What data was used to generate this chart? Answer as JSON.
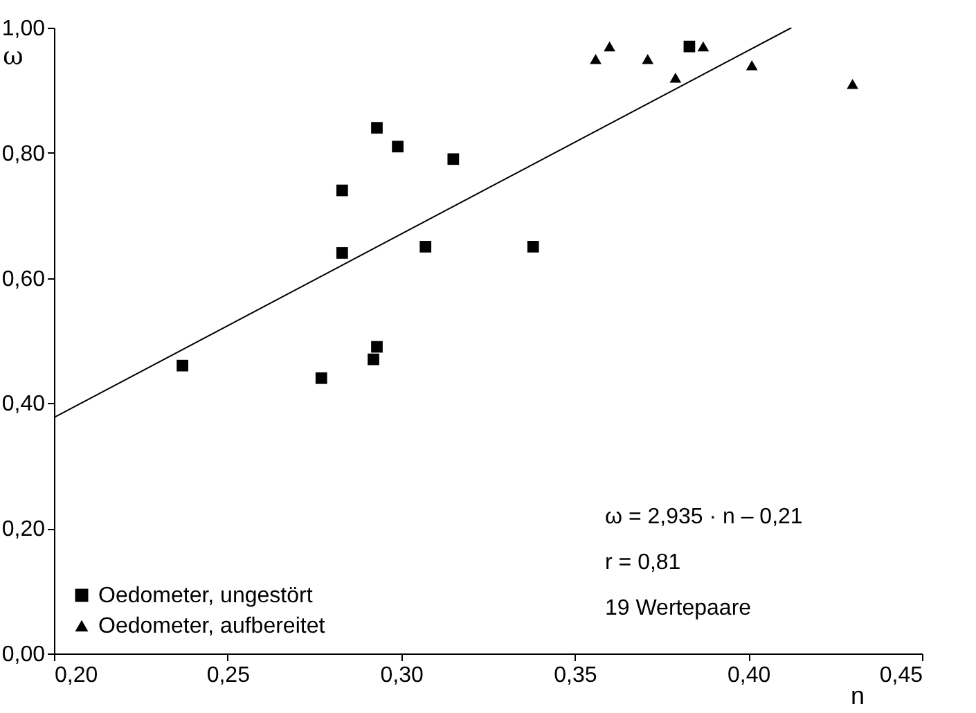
{
  "chart_data": {
    "type": "scatter",
    "xlabel": "n",
    "ylabel": "ω",
    "xlim": [
      0.2,
      0.45
    ],
    "ylim": [
      0,
      1
    ],
    "xticks": [
      {
        "value": 0.2,
        "label": "0,20"
      },
      {
        "value": 0.25,
        "label": "0,25"
      },
      {
        "value": 0.3,
        "label": "0,30"
      },
      {
        "value": 0.35,
        "label": "0,35"
      },
      {
        "value": 0.4,
        "label": "0,40"
      },
      {
        "value": 0.45,
        "label": "0,45"
      }
    ],
    "yticks": [
      {
        "value": 0,
        "label": "0,00"
      },
      {
        "value": 0.2,
        "label": "0,20"
      },
      {
        "value": 0.4,
        "label": "0,40"
      },
      {
        "value": 0.6,
        "label": "0,60"
      },
      {
        "value": 0.8,
        "label": "0,80"
      },
      {
        "value": 1,
        "label": "1,00"
      }
    ],
    "grid": false,
    "legend": "bottom left",
    "series": [
      {
        "name": "Oedometer, ungestört",
        "color": "#000000",
        "marker": "square",
        "x": [
          0.237,
          0.277,
          0.283,
          0.283,
          0.292,
          0.293,
          0.293,
          0.299,
          0.307,
          0.315,
          0.338,
          0.383
        ],
        "values": [
          0.46,
          0.44,
          0.64,
          0.74,
          0.47,
          0.49,
          0.84,
          0.81,
          0.65,
          0.79,
          0.65,
          0.97
        ]
      },
      {
        "name": "Oedometer, aufbereitet",
        "color": "#000000",
        "marker": "triangle",
        "x": [
          0.356,
          0.36,
          0.371,
          0.379,
          0.387,
          0.401,
          0.43
        ],
        "values": [
          0.95,
          0.97,
          0.95,
          0.92,
          0.97,
          0.94,
          0.91
        ]
      },
      {
        "type": "line",
        "color": "#000000",
        "line_style": "solid",
        "marker": "none",
        "x": [
          0.2,
          0.4124
        ],
        "values": [
          0.377,
          1.0
        ]
      }
    ],
    "annotations": [
      "ω = 2,935 · n – 0,21",
      "r = 0,81",
      "19 Wertepaare"
    ]
  }
}
